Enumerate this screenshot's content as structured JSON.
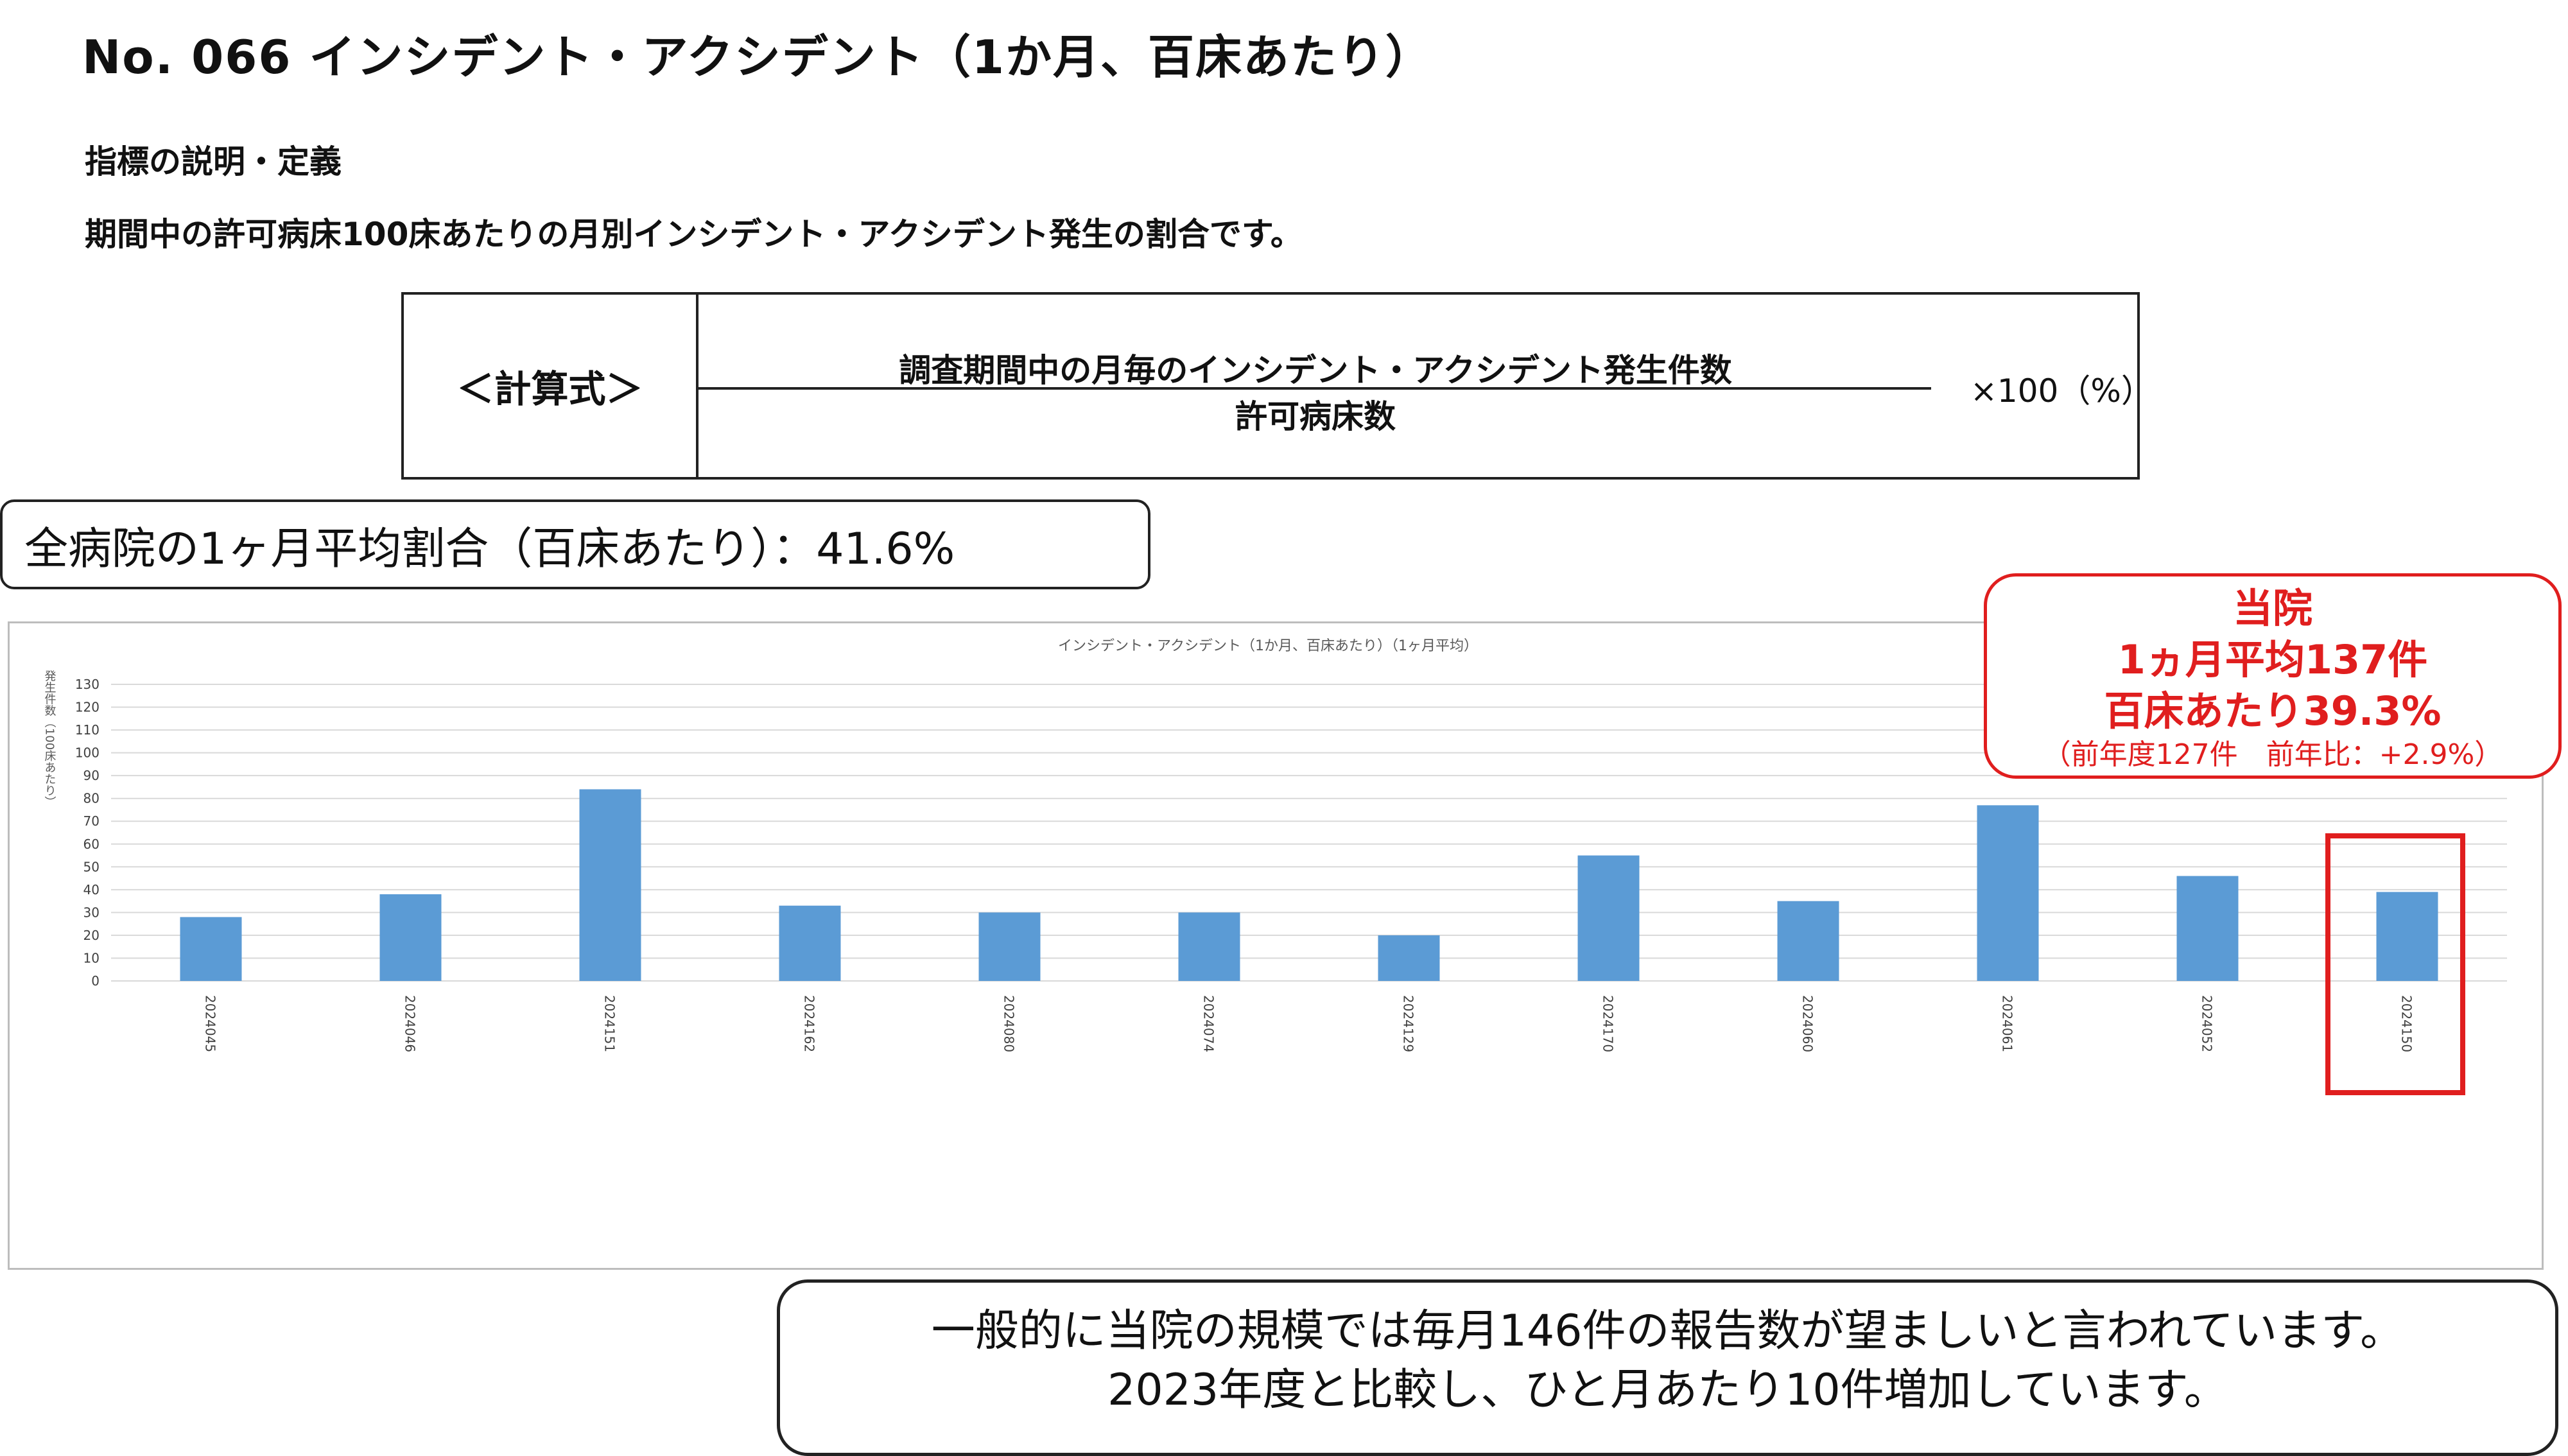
{
  "title": "No. 066 インシデント・アクシデント（1か月、百床あたり）",
  "definition": {
    "heading": "指標の説明・定義",
    "text": "期間中の許可病床100床あたりの月別インシデント・アクシデント発生の割合です。"
  },
  "formula": {
    "label": "＜計算式＞",
    "numerator": "調査期間中の月毎のインシデント・アクシデント発生件数",
    "denominator": "許可病床数",
    "multiplier": "×100（%）"
  },
  "all_hospitals_average": "全病院の1ヶ月平均割合（百床あたり）：41.6%",
  "hospital_callout": {
    "line1": "当院",
    "line2": "1ヵ月平均137件",
    "line3": "百床あたり39.3%",
    "line4": "（前年度127件　前年比：+2.9%）"
  },
  "note": {
    "line1": "一般的に当院の規模では毎月146件の報告数が望ましいと言われています。",
    "line2": "2023年度と比較し、ひと月あたり10件増加しています。"
  },
  "colors": {
    "bar": "#5b9bd5",
    "highlight": "#e01e1e",
    "grid": "#d9d9d9"
  },
  "chart_data": {
    "type": "bar",
    "title": "インシデント・アクシデント（1か月、百床あたり）（1ヶ月平均）",
    "ylabel": "発生件数（100床あたり）",
    "xlabel": "",
    "categories": [
      "2024045",
      "2024046",
      "2024151",
      "2024162",
      "2024080",
      "2024074",
      "2024129",
      "2024170",
      "2024060",
      "2024061",
      "2024052",
      "2024150"
    ],
    "values": [
      28,
      38,
      84,
      33,
      30,
      30,
      20,
      55,
      35,
      77,
      46,
      39
    ],
    "ylim": [
      0,
      130
    ],
    "yticks": [
      0,
      10,
      20,
      30,
      40,
      50,
      60,
      70,
      80,
      90,
      100,
      110,
      120,
      130
    ],
    "grid": true,
    "highlighted_category": "2024150"
  }
}
